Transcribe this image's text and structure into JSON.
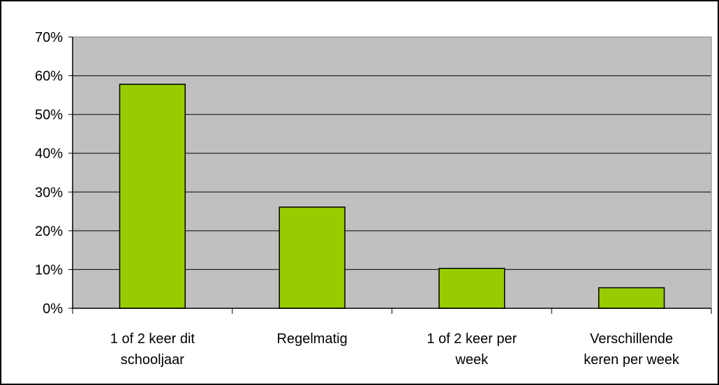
{
  "chart_data": {
    "type": "bar",
    "title": "",
    "xlabel": "",
    "ylabel": "",
    "categories": [
      [
        "1 of 2 keer dit",
        "schooljaar"
      ],
      [
        "Regelmatig"
      ],
      [
        "1 of 2 keer per",
        "week"
      ],
      [
        "Verschillende",
        "keren per week"
      ]
    ],
    "values": [
      0.578,
      0.261,
      0.103,
      0.053
    ],
    "ylim": [
      0,
      0.7
    ],
    "yticks": [
      0,
      0.1,
      0.2,
      0.3,
      0.4,
      0.5,
      0.6,
      0.7
    ],
    "ytick_labels": [
      "0%",
      "10%",
      "20%",
      "30%",
      "40%",
      "50%",
      "60%",
      "70%"
    ],
    "grid": true,
    "legend": "none",
    "colors": {
      "bar_fill": "#99cc00",
      "bar_stroke": "#000000",
      "plot_background": "#c0c0c0",
      "grid": "#000000",
      "chart_background": "#ffffff"
    }
  }
}
